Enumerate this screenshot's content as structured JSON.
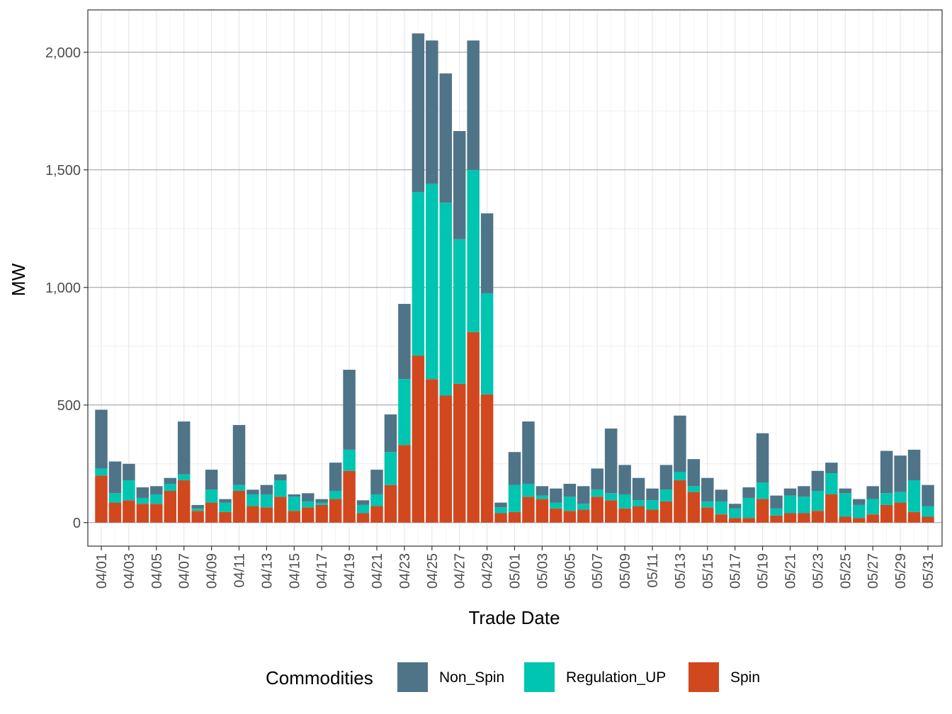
{
  "chart_data": {
    "type": "bar",
    "stacked": true,
    "xlabel": "Trade Date",
    "ylabel": "MW",
    "ylim": [
      -100,
      2180
    ],
    "y_ticks": [
      0,
      500,
      1000,
      1500,
      2000
    ],
    "y_tick_labels": [
      "0",
      "500",
      "1,000",
      "1,500",
      "2,000"
    ],
    "grid": true,
    "legend_position": "bottom",
    "legend_title": "Commodities",
    "categories": [
      "04/01",
      "04/02",
      "04/03",
      "04/04",
      "04/05",
      "04/06",
      "04/07",
      "04/08",
      "04/09",
      "04/10",
      "04/11",
      "04/12",
      "04/13",
      "04/14",
      "04/15",
      "04/16",
      "04/17",
      "04/18",
      "04/19",
      "04/20",
      "04/21",
      "04/22",
      "04/23",
      "04/24",
      "04/25",
      "04/26",
      "04/27",
      "04/28",
      "04/29",
      "04/30",
      "05/01",
      "05/02",
      "05/03",
      "05/04",
      "05/05",
      "05/06",
      "05/07",
      "05/08",
      "05/09",
      "05/10",
      "05/11",
      "05/12",
      "05/13",
      "05/14",
      "05/15",
      "05/16",
      "05/17",
      "05/18",
      "05/19",
      "05/20",
      "05/21",
      "05/22",
      "05/23",
      "05/24",
      "05/25",
      "05/26",
      "05/27",
      "05/28",
      "05/29",
      "05/30",
      "05/31"
    ],
    "x_tick_labels": [
      "04/01",
      "04/03",
      "04/05",
      "04/07",
      "04/09",
      "04/11",
      "04/13",
      "04/15",
      "04/17",
      "04/19",
      "04/21",
      "04/23",
      "04/25",
      "04/27",
      "04/29",
      "05/01",
      "05/03",
      "05/05",
      "05/07",
      "05/09",
      "05/11",
      "05/13",
      "05/15",
      "05/17",
      "05/19",
      "05/21",
      "05/23",
      "05/25",
      "05/27",
      "05/29",
      "05/31"
    ],
    "series": [
      {
        "name": "Spin",
        "color": "#D1481F",
        "values": [
          200,
          85,
          95,
          80,
          80,
          135,
          180,
          50,
          85,
          45,
          135,
          70,
          65,
          110,
          50,
          65,
          75,
          100,
          220,
          40,
          70,
          160,
          330,
          710,
          610,
          540,
          590,
          810,
          545,
          40,
          45,
          110,
          100,
          60,
          50,
          55,
          110,
          95,
          60,
          70,
          55,
          90,
          180,
          130,
          65,
          35,
          20,
          20,
          100,
          30,
          40,
          40,
          50,
          120,
          25,
          20,
          35,
          75,
          85,
          45,
          25
        ]
      },
      {
        "name": "Regulation_UP",
        "color": "#00C5B0",
        "values": [
          30,
          40,
          85,
          25,
          40,
          30,
          25,
          10,
          55,
          40,
          25,
          50,
          55,
          70,
          60,
          25,
          10,
          35,
          90,
          35,
          50,
          140,
          280,
          695,
          830,
          820,
          615,
          690,
          430,
          25,
          115,
          55,
          15,
          25,
          60,
          25,
          30,
          30,
          60,
          25,
          40,
          50,
          35,
          25,
          25,
          55,
          40,
          85,
          70,
          30,
          75,
          70,
          85,
          90,
          100,
          55,
          65,
          50,
          45,
          135,
          45
        ]
      },
      {
        "name": "Non_Spin",
        "color": "#4F7488",
        "values": [
          250,
          135,
          70,
          45,
          35,
          25,
          225,
          15,
          85,
          15,
          255,
          20,
          40,
          25,
          10,
          35,
          15,
          120,
          340,
          20,
          105,
          160,
          320,
          675,
          610,
          550,
          460,
          550,
          340,
          20,
          140,
          265,
          40,
          60,
          55,
          75,
          90,
          275,
          125,
          95,
          50,
          105,
          240,
          115,
          100,
          50,
          20,
          45,
          210,
          55,
          30,
          45,
          85,
          45,
          20,
          25,
          55,
          180,
          155,
          130,
          90
        ]
      }
    ]
  }
}
